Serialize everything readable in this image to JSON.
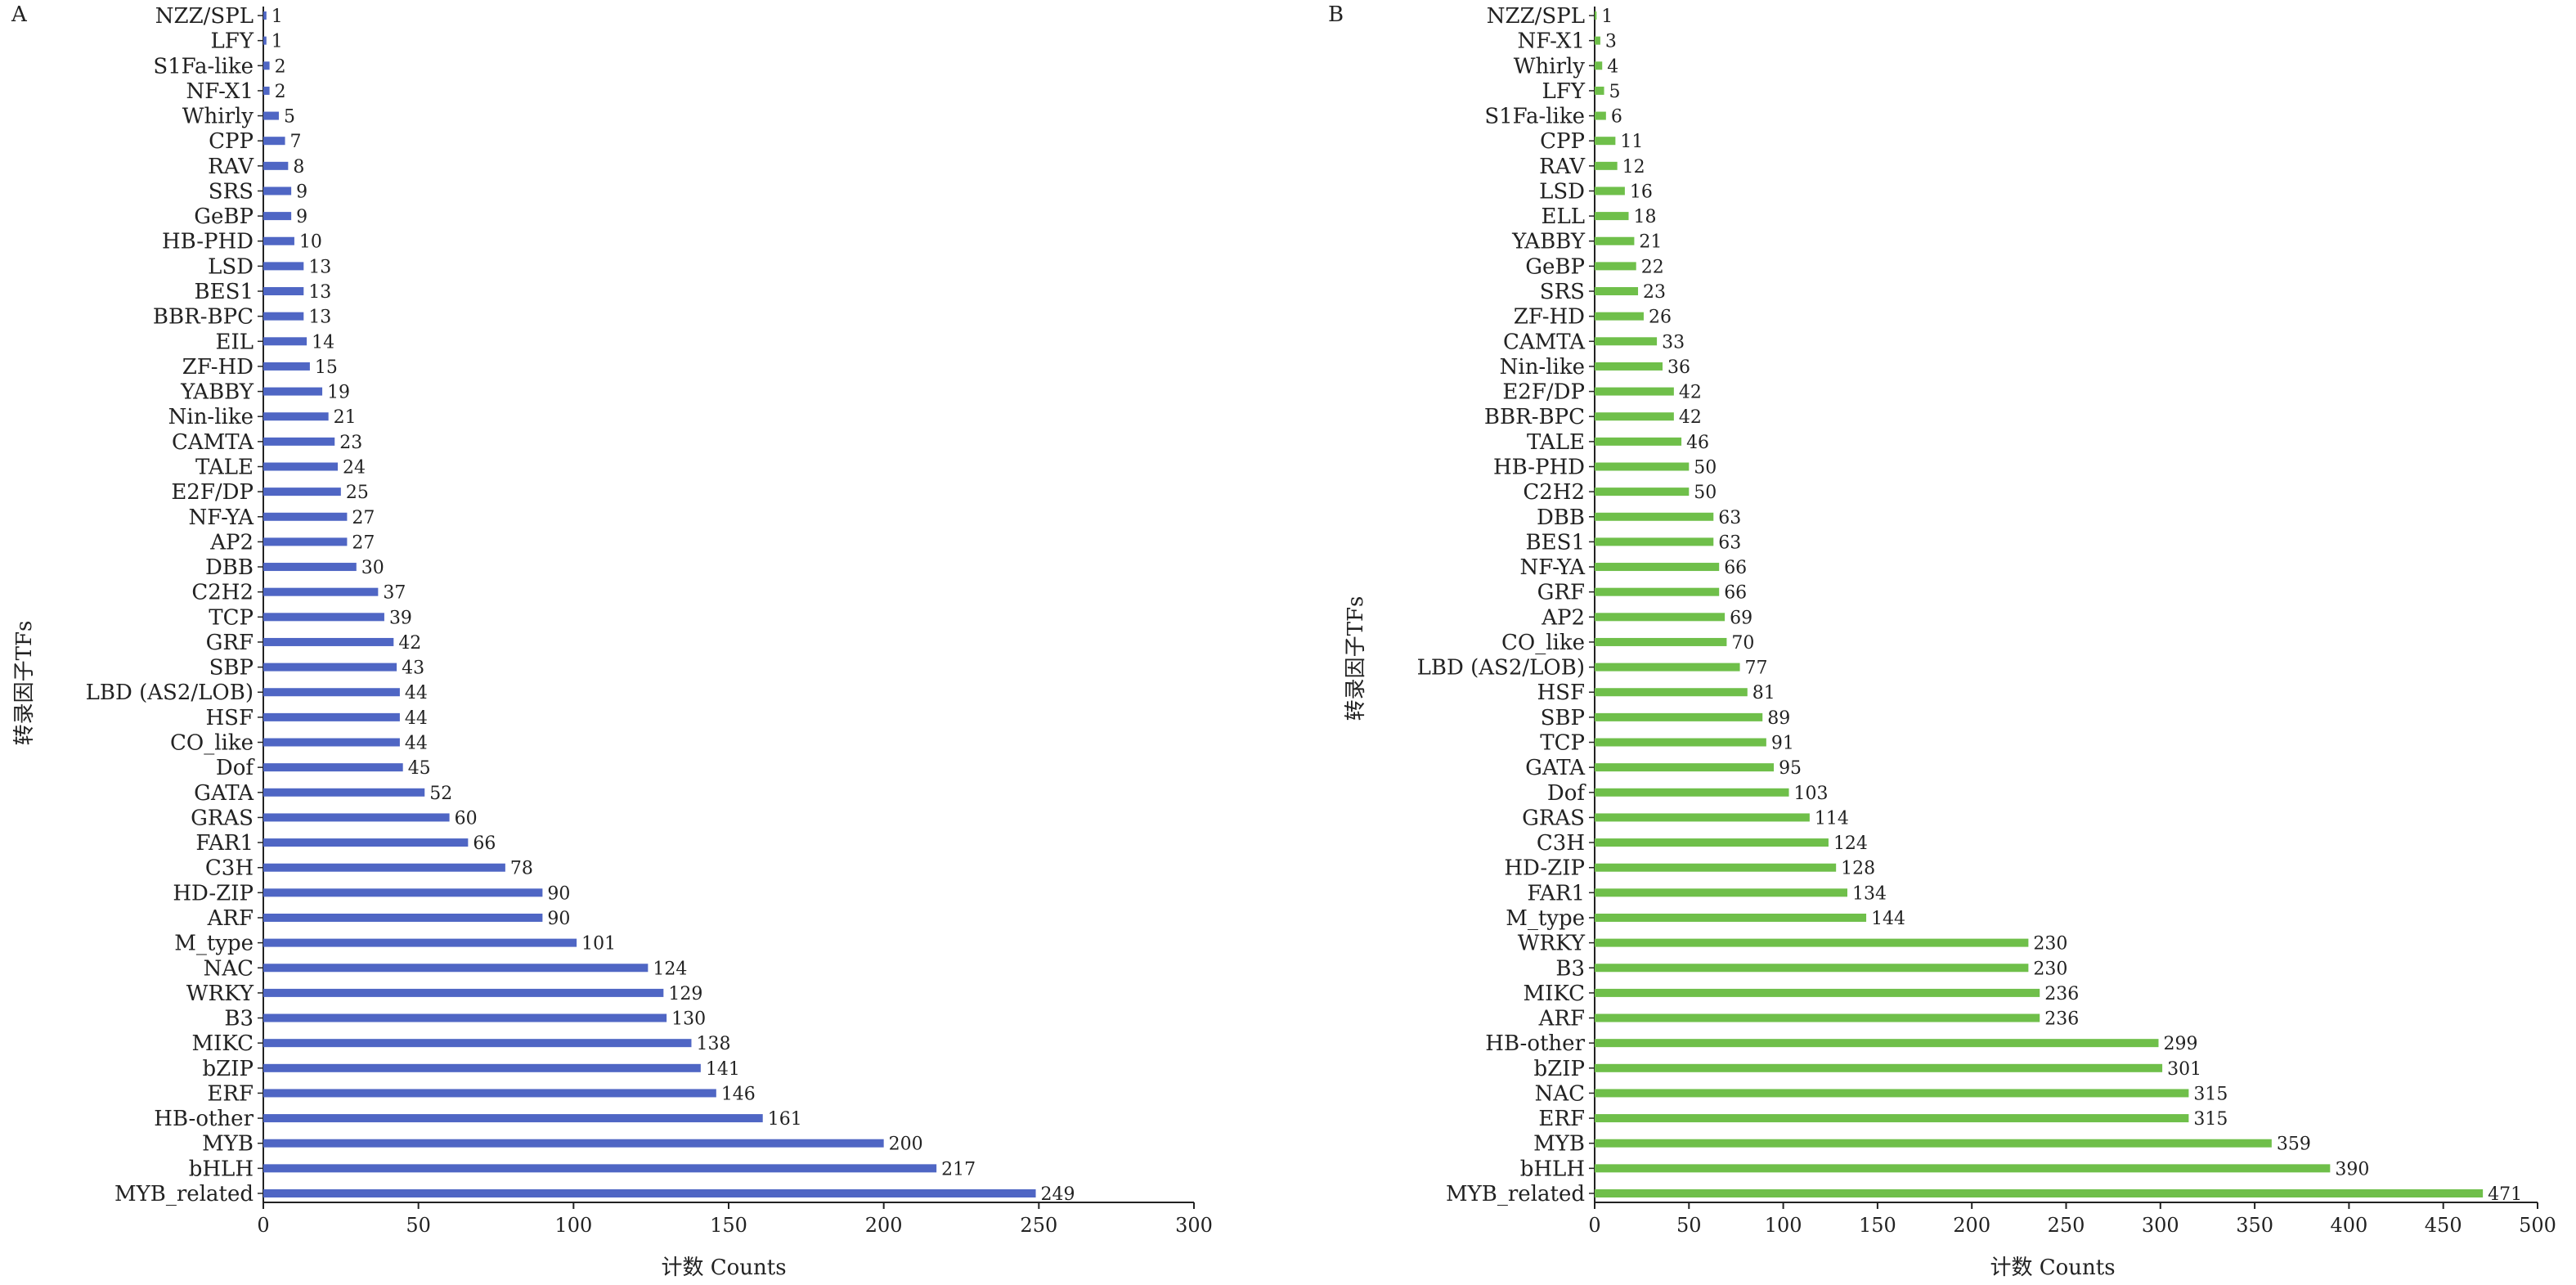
{
  "chart_data": [
    {
      "panel": "A",
      "type": "bar",
      "orientation": "horizontal",
      "categories": [
        "NZZ/SPL",
        "LFY",
        "S1Fa-like",
        "NF-X1",
        "Whirly",
        "CPP",
        "RAV",
        "SRS",
        "GeBP",
        "HB-PHD",
        "LSD",
        "BES1",
        "BBR-BPC",
        "EIL",
        "ZF-HD",
        "YABBY",
        "Nin-like",
        "CAMTA",
        "TALE",
        "E2F/DP",
        "NF-YA",
        "AP2",
        "DBB",
        "C2H2",
        "TCP",
        "GRF",
        "SBP",
        "LBD (AS2/LOB)",
        "HSF",
        "CO_like",
        "Dof",
        "GATA",
        "GRAS",
        "FAR1",
        "C3H",
        "HD-ZIP",
        "ARF",
        "M_type",
        "NAC",
        "WRKY",
        "B3",
        "MIKC",
        "bZIP",
        "ERF",
        "HB-other",
        "MYB",
        "bHLH",
        "MYB_related"
      ],
      "values": [
        1,
        1,
        2,
        2,
        5,
        7,
        8,
        9,
        9,
        10,
        13,
        13,
        13,
        14,
        15,
        19,
        21,
        23,
        24,
        25,
        27,
        27,
        30,
        37,
        39,
        42,
        43,
        44,
        44,
        44,
        45,
        52,
        60,
        66,
        78,
        90,
        90,
        101,
        124,
        129,
        130,
        138,
        141,
        146,
        161,
        200,
        217,
        249
      ],
      "xlabel": "计数 Counts",
      "ylabel": "转录因子TFs",
      "xlim": [
        0,
        300
      ],
      "xticks": [
        "0",
        "50",
        "100",
        "150",
        "200",
        "250",
        "300"
      ],
      "bar_color": "#4f66c4",
      "grid": false
    },
    {
      "panel": "B",
      "type": "bar",
      "orientation": "horizontal",
      "categories": [
        "NZZ/SPL",
        "NF-X1",
        "Whirly",
        "LFY",
        "S1Fa-like",
        "CPP",
        "RAV",
        "LSD",
        "ELL",
        "YABBY",
        "GeBP",
        "SRS",
        "ZF-HD",
        "CAMTA",
        "Nin-like",
        "E2F/DP",
        "BBR-BPC",
        "TALE",
        "HB-PHD",
        "C2H2",
        "DBB",
        "BES1",
        "NF-YA",
        "GRF",
        "AP2",
        "CO_like",
        "LBD (AS2/LOB)",
        "HSF",
        "SBP",
        "TCP",
        "GATA",
        "Dof",
        "GRAS",
        "C3H",
        "HD-ZIP",
        "FAR1",
        "M_type",
        "WRKY",
        "B3",
        "MIKC",
        "ARF",
        "HB-other",
        "bZIP",
        "NAC",
        "ERF",
        "MYB",
        "bHLH",
        "MYB_related"
      ],
      "values": [
        1,
        3,
        4,
        5,
        6,
        11,
        12,
        16,
        18,
        21,
        22,
        23,
        26,
        33,
        36,
        42,
        42,
        46,
        50,
        50,
        63,
        63,
        66,
        66,
        69,
        70,
        77,
        81,
        89,
        91,
        95,
        103,
        114,
        124,
        128,
        134,
        144,
        230,
        230,
        236,
        236,
        299,
        301,
        315,
        315,
        359,
        390,
        471
      ],
      "xlabel": "计数 Counts",
      "ylabel": "转录因子TFs",
      "xlim": [
        0,
        500
      ],
      "xticks": [
        "0",
        "50",
        "100",
        "150",
        "200",
        "250",
        "300",
        "350",
        "400",
        "450",
        "500"
      ],
      "bar_color": "#6fbf4a",
      "grid": false
    }
  ]
}
